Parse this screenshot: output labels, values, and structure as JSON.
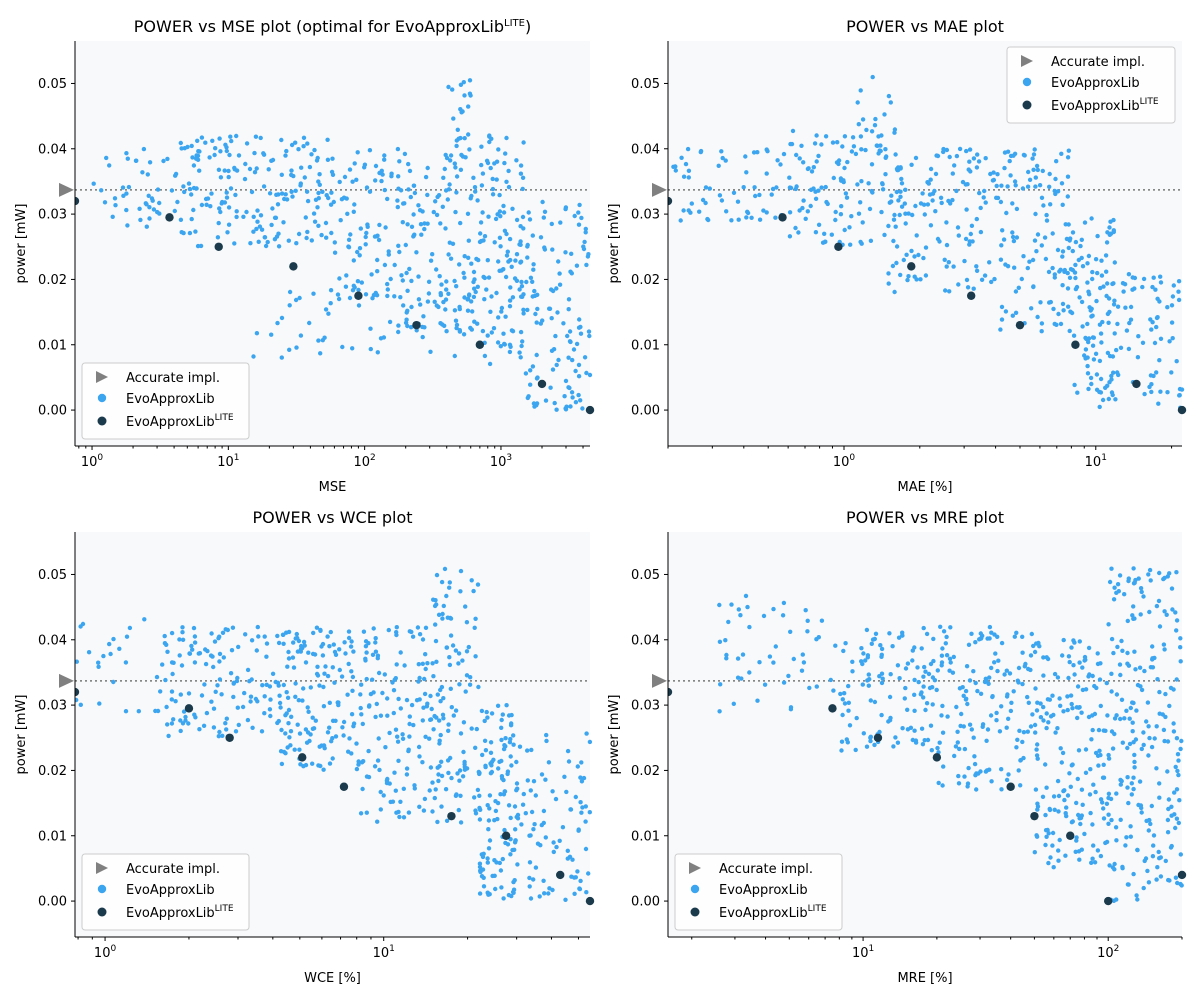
{
  "chart_data": [
    {
      "type": "scatter",
      "title": "POWER vs MSE plot (optimal for EvoApproxLib",
      "title_sup": "LITE",
      "title_suffix": ")",
      "xlabel": "MSE",
      "ylabel": "power [mW]",
      "xscale": "log",
      "xlim": [
        0.75,
        4500
      ],
      "ylim": [
        -0.0055,
        0.0565
      ],
      "xticks": [
        {
          "base": "10",
          "exp": "0",
          "value": 1
        },
        {
          "base": "10",
          "exp": "1",
          "value": 10
        },
        {
          "base": "10",
          "exp": "2",
          "value": 100
        },
        {
          "base": "10",
          "exp": "3",
          "value": 1000
        }
      ],
      "yticks": [
        "0.00",
        "0.01",
        "0.02",
        "0.03",
        "0.04",
        "0.05"
      ],
      "accurate_power": 0.0337,
      "legend": {
        "position": "lower-left",
        "entries": [
          "Accurate impl.",
          "EvoApproxLib",
          "EvoApproxLib"
        ],
        "lite_sup": "LITE"
      },
      "lite_points": [
        [
          0.75,
          0.032
        ],
        [
          3.7,
          0.0295
        ],
        [
          8.5,
          0.025
        ],
        [
          30,
          0.022
        ],
        [
          90,
          0.0175
        ],
        [
          240,
          0.013
        ],
        [
          700,
          0.01
        ],
        [
          2000,
          0.004
        ],
        [
          4500,
          0.0
        ]
      ],
      "cloud": [
        {
          "x": [
            1,
            4
          ],
          "y": [
            0.028,
            0.04
          ],
          "n": 40
        },
        {
          "x": [
            4,
            15
          ],
          "y": [
            0.025,
            0.042
          ],
          "n": 90
        },
        {
          "x": [
            15,
            60
          ],
          "y": [
            0.025,
            0.042
          ],
          "n": 100
        },
        {
          "x": [
            60,
            200
          ],
          "y": [
            0.017,
            0.04
          ],
          "n": 90
        },
        {
          "x": [
            200,
            700
          ],
          "y": [
            0.012,
            0.04
          ],
          "n": 120
        },
        {
          "x": [
            400,
            600
          ],
          "y": [
            0.038,
            0.051
          ],
          "n": 25
        },
        {
          "x": [
            700,
            1500
          ],
          "y": [
            0.007,
            0.043
          ],
          "n": 110
        },
        {
          "x": [
            1500,
            4500
          ],
          "y": [
            0.0,
            0.032
          ],
          "n": 120
        },
        {
          "x": [
            15,
            1500
          ],
          "y": [
            0.008,
            0.02
          ],
          "n": 80
        }
      ]
    },
    {
      "type": "scatter",
      "title": "POWER vs MAE plot",
      "title_sup": "",
      "title_suffix": "",
      "xlabel": "MAE [%]",
      "ylabel": "power [mW]",
      "xscale": "log",
      "xlim": [
        0.2,
        22
      ],
      "ylim": [
        -0.0055,
        0.0565
      ],
      "xticks": [
        {
          "base": "10",
          "exp": "0",
          "value": 1
        },
        {
          "base": "10",
          "exp": "1",
          "value": 10
        }
      ],
      "yticks": [
        "0.00",
        "0.01",
        "0.02",
        "0.03",
        "0.04",
        "0.05"
      ],
      "accurate_power": 0.0337,
      "legend": {
        "position": "upper-right",
        "entries": [
          "Accurate impl.",
          "EvoApproxLib",
          "EvoApproxLib"
        ],
        "lite_sup": "LITE"
      },
      "lite_points": [
        [
          0.2,
          0.032
        ],
        [
          0.57,
          0.0295
        ],
        [
          0.95,
          0.025
        ],
        [
          1.85,
          0.022
        ],
        [
          3.2,
          0.0175
        ],
        [
          5.0,
          0.013
        ],
        [
          8.3,
          0.01
        ],
        [
          14.5,
          0.004
        ],
        [
          22,
          0.0
        ]
      ],
      "cloud": [
        {
          "x": [
            0.2,
            0.6
          ],
          "y": [
            0.029,
            0.04
          ],
          "n": 60
        },
        {
          "x": [
            0.6,
            1.5
          ],
          "y": [
            0.025,
            0.043
          ],
          "n": 110
        },
        {
          "x": [
            1.1,
            1.6
          ],
          "y": [
            0.04,
            0.051
          ],
          "n": 15
        },
        {
          "x": [
            1.5,
            4
          ],
          "y": [
            0.018,
            0.04
          ],
          "n": 140
        },
        {
          "x": [
            4,
            8
          ],
          "y": [
            0.012,
            0.04
          ],
          "n": 130
        },
        {
          "x": [
            8,
            12
          ],
          "y": [
            0.0,
            0.03
          ],
          "n": 110
        },
        {
          "x": [
            12,
            22
          ],
          "y": [
            0.0,
            0.021
          ],
          "n": 70
        }
      ]
    },
    {
      "type": "scatter",
      "title": "POWER vs WCE plot",
      "title_sup": "",
      "title_suffix": "",
      "xlabel": "WCE [%]",
      "ylabel": "power [mW]",
      "xscale": "log",
      "xlim": [
        0.78,
        55
      ],
      "ylim": [
        -0.0055,
        0.0565
      ],
      "xticks": [
        {
          "base": "10",
          "exp": "0",
          "value": 1
        },
        {
          "base": "10",
          "exp": "1",
          "value": 10
        }
      ],
      "yticks": [
        "0.00",
        "0.01",
        "0.02",
        "0.03",
        "0.04",
        "0.05"
      ],
      "accurate_power": 0.0337,
      "legend": {
        "position": "lower-left",
        "entries": [
          "Accurate impl.",
          "EvoApproxLib",
          "EvoApproxLib"
        ],
        "lite_sup": "LITE"
      },
      "lite_points": [
        [
          0.78,
          0.032
        ],
        [
          2.0,
          0.0295
        ],
        [
          2.8,
          0.025
        ],
        [
          5.1,
          0.022
        ],
        [
          7.2,
          0.0175
        ],
        [
          17.5,
          0.013
        ],
        [
          27.5,
          0.01
        ],
        [
          43,
          0.004
        ],
        [
          55,
          0.0
        ]
      ],
      "cloud": [
        {
          "x": [
            0.78,
            1.6
          ],
          "y": [
            0.029,
            0.047
          ],
          "n": 25
        },
        {
          "x": [
            1.6,
            4
          ],
          "y": [
            0.025,
            0.042
          ],
          "n": 120
        },
        {
          "x": [
            4,
            8
          ],
          "y": [
            0.02,
            0.042
          ],
          "n": 150
        },
        {
          "x": [
            8,
            15
          ],
          "y": [
            0.012,
            0.042
          ],
          "n": 140
        },
        {
          "x": [
            15,
            22
          ],
          "y": [
            0.012,
            0.051
          ],
          "n": 110
        },
        {
          "x": [
            22,
            30
          ],
          "y": [
            0.0,
            0.03
          ],
          "n": 120
        },
        {
          "x": [
            30,
            55
          ],
          "y": [
            0.0,
            0.026
          ],
          "n": 90
        }
      ]
    },
    {
      "type": "scatter",
      "title": "POWER vs MRE plot",
      "title_sup": "",
      "title_suffix": "",
      "xlabel": "MRE [%]",
      "ylabel": "power [mW]",
      "xscale": "log",
      "xlim": [
        1.6,
        200
      ],
      "ylim": [
        -0.0055,
        0.0565
      ],
      "xticks": [
        {
          "base": "10",
          "exp": "1",
          "value": 10
        },
        {
          "base": "10",
          "exp": "2",
          "value": 100
        }
      ],
      "yticks": [
        "0.00",
        "0.01",
        "0.02",
        "0.03",
        "0.04",
        "0.05"
      ],
      "accurate_power": 0.0337,
      "legend": {
        "position": "lower-left",
        "entries": [
          "Accurate impl.",
          "EvoApproxLib",
          "EvoApproxLib"
        ],
        "lite_sup": "LITE"
      },
      "lite_points": [
        [
          1.6,
          0.032
        ],
        [
          7.5,
          0.0295
        ],
        [
          11.5,
          0.025
        ],
        [
          20,
          0.022
        ],
        [
          40,
          0.0175
        ],
        [
          50,
          0.013
        ],
        [
          70,
          0.01
        ],
        [
          100,
          0.0
        ],
        [
          200,
          0.004
        ]
      ],
      "cloud": [
        {
          "x": [
            2.5,
            8
          ],
          "y": [
            0.029,
            0.047
          ],
          "n": 50
        },
        {
          "x": [
            8,
            20
          ],
          "y": [
            0.023,
            0.042
          ],
          "n": 120
        },
        {
          "x": [
            20,
            50
          ],
          "y": [
            0.017,
            0.042
          ],
          "n": 150
        },
        {
          "x": [
            50,
            100
          ],
          "y": [
            0.005,
            0.04
          ],
          "n": 180
        },
        {
          "x": [
            100,
            200
          ],
          "y": [
            0.0,
            0.051
          ],
          "n": 230
        }
      ]
    }
  ],
  "colors": {
    "evoapprox": "#3ca5f0",
    "lite": "#1b3a4b",
    "accurate": "#808080",
    "axes_bg": "#f7f9fb",
    "ref_line": "#777777"
  }
}
